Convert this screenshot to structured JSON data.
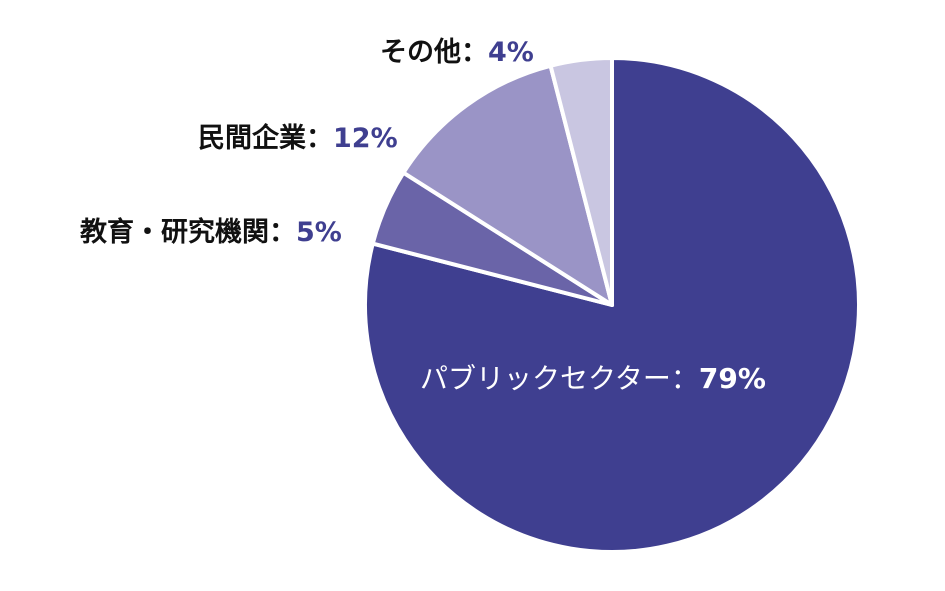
{
  "chart_data": {
    "type": "pie",
    "title": "",
    "start_angle_deg": 0,
    "direction": "clockwise",
    "slices": [
      {
        "label": "パブリックセクター",
        "value": 79,
        "display": "79%",
        "color": "#3f3f90",
        "label_position": "inside"
      },
      {
        "label": "教育・研究機関",
        "value": 5,
        "display": "5%",
        "color": "#6a64a8",
        "label_position": "outside"
      },
      {
        "label": "民間企業",
        "value": 12,
        "display": "12%",
        "color": "#9a94c6",
        "label_position": "outside"
      },
      {
        "label": "その他",
        "value": 4,
        "display": "4%",
        "color": "#c9c6e1",
        "label_position": "outside"
      }
    ],
    "separator": "：",
    "legend": "none",
    "label_colors": {
      "name": "#111111",
      "percent": "#3f3f90",
      "inside": "#ffffff"
    },
    "slice_border_color": "#ffffff"
  },
  "labels": {
    "public": {
      "name": "パブリックセクター",
      "sep": "：",
      "pct": "79%"
    },
    "edu": {
      "name": "教育・研究機関",
      "sep": "：",
      "pct": "5%"
    },
    "private": {
      "name": "民間企業",
      "sep": "：",
      "pct": "12%"
    },
    "other": {
      "name": "その他",
      "sep": "：",
      "pct": "4%"
    }
  }
}
